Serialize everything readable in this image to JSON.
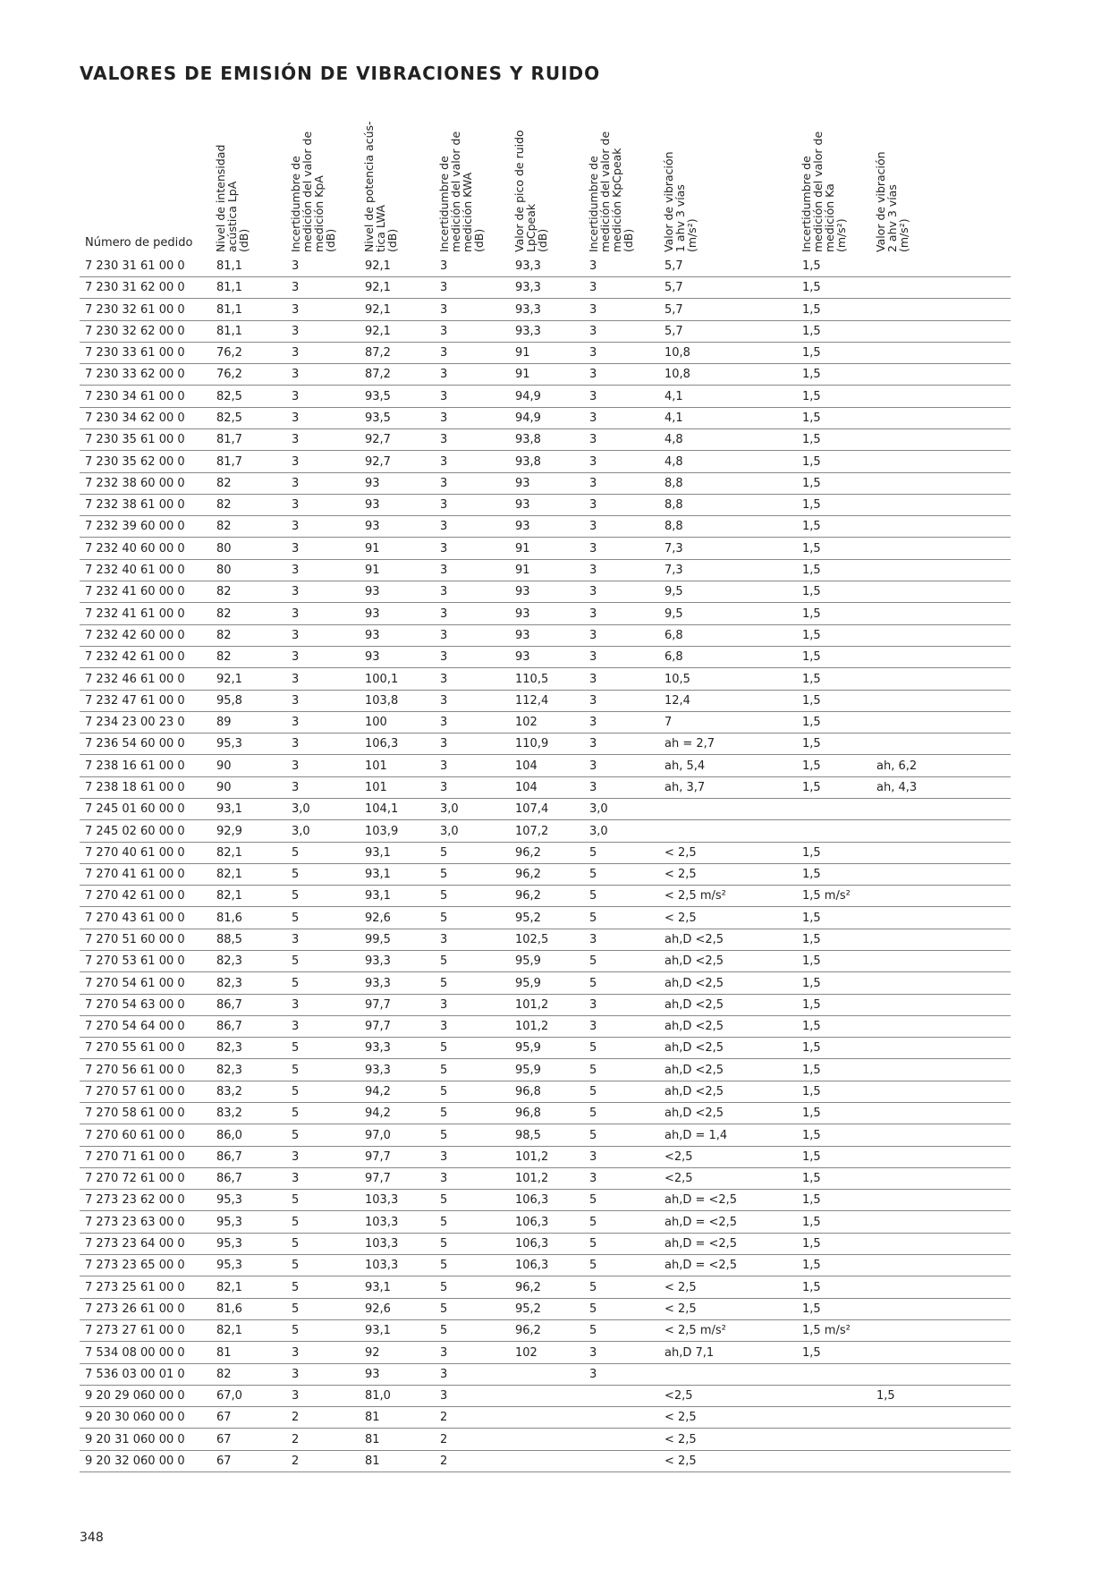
{
  "header": {
    "title": "VALORES DE EMISIÓN DE VIBRACIONES Y RUIDO"
  },
  "table": {
    "columns": [
      [
        "Número de pedido"
      ],
      [
        "Nivel de intensidad",
        "acústica LpA",
        "(dB)"
      ],
      [
        "Incertidumbre de",
        "medición del valor de",
        "medición KpA",
        "(dB)"
      ],
      [
        "Nivel de potencia acús-",
        "tica LWA",
        "(dB)"
      ],
      [
        "Incertidumbre de",
        "medición del valor de",
        "medición KWA",
        "(dB)"
      ],
      [
        "Valor de pico de ruido",
        "LpCpeak",
        "(dB)"
      ],
      [
        "Incertidumbre de",
        "medición del valor de",
        "medición KpCpeak",
        "(dB)"
      ],
      [
        "Valor de vibración",
        "1 ahv 3 vías",
        "(m/s²)"
      ],
      [
        "Incertidumbre de",
        "medición del valor de",
        "medición Ka",
        "(m/s²)"
      ],
      [
        "Valor de vibración",
        "2 ahv 3 vías",
        "(m/s²)"
      ]
    ],
    "rows": [
      [
        "7 230 31 61 00 0",
        "81,1",
        "3",
        "92,1",
        "3",
        "93,3",
        "3",
        "5,7",
        "1,5",
        null
      ],
      [
        "7 230 31 62 00 0",
        "81,1",
        "3",
        "92,1",
        "3",
        "93,3",
        "3",
        "5,7",
        "1,5",
        null
      ],
      [
        "7 230 32 61 00 0",
        "81,1",
        "3",
        "92,1",
        "3",
        "93,3",
        "3",
        "5,7",
        "1,5",
        null
      ],
      [
        "7 230 32 62 00 0",
        "81,1",
        "3",
        "92,1",
        "3",
        "93,3",
        "3",
        "5,7",
        "1,5",
        null
      ],
      [
        "7 230 33 61 00 0",
        "76,2",
        "3",
        "87,2",
        "3",
        "91",
        "3",
        "10,8",
        "1,5",
        null
      ],
      [
        "7 230 33 62 00 0",
        "76,2",
        "3",
        "87,2",
        "3",
        "91",
        "3",
        "10,8",
        "1,5",
        null
      ],
      [
        "7 230 34 61 00 0",
        "82,5",
        "3",
        "93,5",
        "3",
        "94,9",
        "3",
        "4,1",
        "1,5",
        null
      ],
      [
        "7 230 34 62 00 0",
        "82,5",
        "3",
        "93,5",
        "3",
        "94,9",
        "3",
        "4,1",
        "1,5",
        null
      ],
      [
        "7 230 35 61 00 0",
        "81,7",
        "3",
        "92,7",
        "3",
        "93,8",
        "3",
        "4,8",
        "1,5",
        null
      ],
      [
        "7 230 35 62 00 0",
        "81,7",
        "3",
        "92,7",
        "3",
        "93,8",
        "3",
        "4,8",
        "1,5",
        null
      ],
      [
        "7 232 38 60 00 0",
        "82",
        "3",
        "93",
        "3",
        "93",
        "3",
        "8,8",
        "1,5",
        null
      ],
      [
        "7 232 38 61 00 0",
        "82",
        "3",
        "93",
        "3",
        "93",
        "3",
        "8,8",
        "1,5",
        null
      ],
      [
        "7 232 39 60 00 0",
        "82",
        "3",
        "93",
        "3",
        "93",
        "3",
        "8,8",
        "1,5",
        null
      ],
      [
        "7 232 40 60 00 0",
        "80",
        "3",
        "91",
        "3",
        "91",
        "3",
        "7,3",
        "1,5",
        null
      ],
      [
        "7 232 40 61 00 0",
        "80",
        "3",
        "91",
        "3",
        "91",
        "3",
        "7,3",
        "1,5",
        null
      ],
      [
        "7 232 41 60 00 0",
        "82",
        "3",
        "93",
        "3",
        "93",
        "3",
        "9,5",
        "1,5",
        null
      ],
      [
        "7 232 41 61 00 0",
        "82",
        "3",
        "93",
        "3",
        "93",
        "3",
        "9,5",
        "1,5",
        null
      ],
      [
        "7 232 42 60 00 0",
        "82",
        "3",
        "93",
        "3",
        "93",
        "3",
        "6,8",
        "1,5",
        null
      ],
      [
        "7 232 42 61 00 0",
        "82",
        "3",
        "93",
        "3",
        "93",
        "3",
        "6,8",
        "1,5",
        null
      ],
      [
        "7 232 46 61 00 0",
        "92,1",
        "3",
        "100,1",
        "3",
        "110,5",
        "3",
        "10,5",
        "1,5",
        null
      ],
      [
        "7 232 47 61 00 0",
        "95,8",
        "3",
        "103,8",
        "3",
        "112,4",
        "3",
        "12,4",
        "1,5",
        null
      ],
      [
        "7 234 23 00 23 0",
        "89",
        "3",
        "100",
        "3",
        "102",
        "3",
        "7",
        "1,5",
        null
      ],
      [
        "7 236 54 60 00 0",
        "95,3",
        "3",
        "106,3",
        "3",
        "110,9",
        "3",
        "ah = 2,7",
        "1,5",
        null
      ],
      [
        "7 238 16 61 00 0",
        "90",
        "3",
        "101",
        "3",
        "104",
        "3",
        "ah, 5,4",
        "1,5",
        "ah, 6,2"
      ],
      [
        "7 238 18 61 00 0",
        "90",
        "3",
        "101",
        "3",
        "104",
        "3",
        "ah, 3,7",
        "1,5",
        "ah, 4,3"
      ],
      [
        "7 245 01 60 00 0",
        "93,1",
        "3,0",
        "104,1",
        "3,0",
        "107,4",
        "3,0",
        null,
        null,
        null
      ],
      [
        "7 245 02 60 00 0",
        "92,9",
        "3,0",
        "103,9",
        "3,0",
        "107,2",
        "3,0",
        null,
        null,
        null
      ],
      [
        "7 270 40 61 00 0",
        "82,1",
        "5",
        "93,1",
        "5",
        "96,2",
        "5",
        "< 2,5",
        "1,5",
        null
      ],
      [
        "7 270 41 61 00 0",
        "82,1",
        "5",
        "93,1",
        "5",
        "96,2",
        "5",
        "< 2,5",
        "1,5",
        null
      ],
      [
        "7 270 42 61 00 0",
        "82,1",
        "5",
        "93,1",
        "5",
        "96,2",
        "5",
        "< 2,5 m/s²",
        "1,5 m/s²",
        null
      ],
      [
        "7 270 43 61 00 0",
        "81,6",
        "5",
        "92,6",
        "5",
        "95,2",
        "5",
        "< 2,5",
        "1,5",
        null
      ],
      [
        "7 270 51 60 00 0",
        "88,5",
        "3",
        "99,5",
        "3",
        "102,5",
        "3",
        "ah,D <2,5",
        "1,5",
        null
      ],
      [
        "7 270 53 61 00 0",
        "82,3",
        "5",
        "93,3",
        "5",
        "95,9",
        "5",
        "ah,D <2,5",
        "1,5",
        null
      ],
      [
        "7 270 54 61 00 0",
        "82,3",
        "5",
        "93,3",
        "5",
        "95,9",
        "5",
        "ah,D <2,5",
        "1,5",
        null
      ],
      [
        "7 270 54 63 00 0",
        "86,7",
        "3",
        "97,7",
        "3",
        "101,2",
        "3",
        "ah,D <2,5",
        "1,5",
        null
      ],
      [
        "7 270 54 64 00 0",
        "86,7",
        "3",
        "97,7",
        "3",
        "101,2",
        "3",
        "ah,D <2,5",
        "1,5",
        null
      ],
      [
        "7 270 55 61 00 0",
        "82,3",
        "5",
        "93,3",
        "5",
        "95,9",
        "5",
        "ah,D <2,5",
        "1,5",
        null
      ],
      [
        "7 270 56 61 00 0",
        "82,3",
        "5",
        "93,3",
        "5",
        "95,9",
        "5",
        "ah,D <2,5",
        "1,5",
        null
      ],
      [
        "7 270 57 61 00 0",
        "83,2",
        "5",
        "94,2",
        "5",
        "96,8",
        "5",
        "ah,D <2,5",
        "1,5",
        null
      ],
      [
        "7 270 58 61 00 0",
        "83,2",
        "5",
        "94,2",
        "5",
        "96,8",
        "5",
        "ah,D <2,5",
        "1,5",
        null
      ],
      [
        "7 270 60 61 00 0",
        "86,0",
        "5",
        "97,0",
        "5",
        "98,5",
        "5",
        "ah,D = 1,4",
        "1,5",
        null
      ],
      [
        "7 270 71 61 00 0",
        "86,7",
        "3",
        "97,7",
        "3",
        "101,2",
        "3",
        "<2,5",
        "1,5",
        null
      ],
      [
        "7 270 72 61 00 0",
        "86,7",
        "3",
        "97,7",
        "3",
        "101,2",
        "3",
        "<2,5",
        "1,5",
        null
      ],
      [
        "7 273 23 62 00 0",
        "95,3",
        "5",
        "103,3",
        "5",
        "106,3",
        "5",
        "ah,D = <2,5",
        "1,5",
        null
      ],
      [
        "7 273 23 63 00 0",
        "95,3",
        "5",
        "103,3",
        "5",
        "106,3",
        "5",
        "ah,D = <2,5",
        "1,5",
        null
      ],
      [
        "7 273 23 64 00 0",
        "95,3",
        "5",
        "103,3",
        "5",
        "106,3",
        "5",
        "ah,D = <2,5",
        "1,5",
        null
      ],
      [
        "7 273 23 65 00 0",
        "95,3",
        "5",
        "103,3",
        "5",
        "106,3",
        "5",
        "ah,D = <2,5",
        "1,5",
        null
      ],
      [
        "7 273 25 61 00 0",
        "82,1",
        "5",
        "93,1",
        "5",
        "96,2",
        "5",
        "< 2,5",
        "1,5",
        null
      ],
      [
        "7 273 26 61 00 0",
        "81,6",
        "5",
        "92,6",
        "5",
        "95,2",
        "5",
        "< 2,5",
        "1,5",
        null
      ],
      [
        "7 273 27 61 00 0",
        "82,1",
        "5",
        "93,1",
        "5",
        "96,2",
        "5",
        "< 2,5 m/s²",
        "1,5 m/s²",
        null
      ],
      [
        "7 534 08 00 00 0",
        "81",
        "3",
        "92",
        "3",
        "102",
        "3",
        "ah,D 7,1",
        "1,5",
        null
      ],
      [
        "7 536 03 00 01 0",
        "82",
        "3",
        "93",
        "3",
        null,
        "3",
        null,
        null,
        null
      ],
      [
        "9 20 29 060 00 0",
        "67,0",
        "3",
        "81,0",
        "3",
        null,
        null,
        "<2,5",
        null,
        "1,5"
      ],
      [
        "9 20 30 060 00 0",
        "67",
        "2",
        "81",
        "2",
        null,
        null,
        "< 2,5",
        null,
        null
      ],
      [
        "9 20 31 060 00 0",
        "67",
        "2",
        "81",
        "2",
        null,
        null,
        "< 2,5",
        null,
        null
      ],
      [
        "9 20 32 060 00 0",
        "67",
        "2",
        "81",
        "2",
        null,
        null,
        "< 2,5",
        null,
        null
      ]
    ]
  },
  "footer": {
    "page_number": "348"
  }
}
